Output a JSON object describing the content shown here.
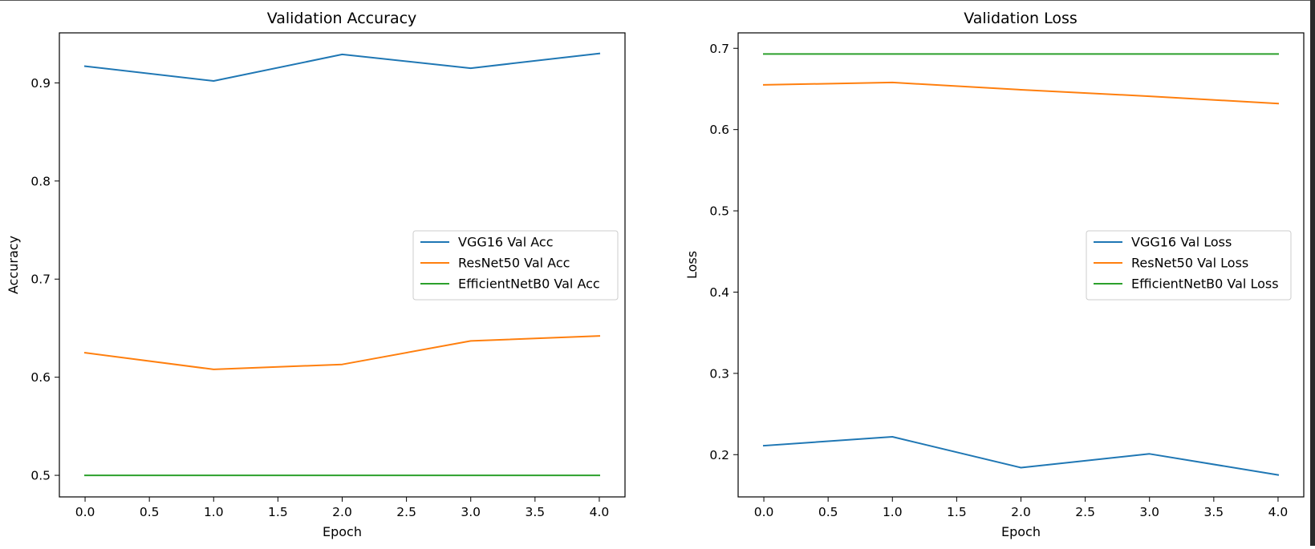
{
  "chart_data": [
    {
      "type": "line",
      "title": "Validation Accuracy",
      "xlabel": "Epoch",
      "ylabel": "Accuracy",
      "x": [
        0,
        1,
        2,
        3,
        4
      ],
      "xlim": [
        -0.2,
        4.2
      ],
      "ylim": [
        0.478,
        0.951
      ],
      "xticks": [
        0.0,
        0.5,
        1.0,
        1.5,
        2.0,
        2.5,
        3.0,
        3.5,
        4.0
      ],
      "xtick_labels": [
        "0.0",
        "0.5",
        "1.0",
        "1.5",
        "2.0",
        "2.5",
        "3.0",
        "3.5",
        "4.0"
      ],
      "yticks": [
        0.5,
        0.6,
        0.7,
        0.8,
        0.9
      ],
      "ytick_labels": [
        "0.5",
        "0.6",
        "0.7",
        "0.8",
        "0.9"
      ],
      "legend_position": "center-right",
      "series": [
        {
          "name": "VGG16 Val Acc",
          "color": "#1f77b4",
          "values": [
            0.917,
            0.902,
            0.929,
            0.915,
            0.93
          ]
        },
        {
          "name": "ResNet50 Val Acc",
          "color": "#ff7f0e",
          "values": [
            0.625,
            0.608,
            0.613,
            0.637,
            0.642
          ]
        },
        {
          "name": "EfficientNetB0 Val Acc",
          "color": "#2ca02c",
          "values": [
            0.5,
            0.5,
            0.5,
            0.5,
            0.5
          ]
        }
      ],
      "grid": false
    },
    {
      "type": "line",
      "title": "Validation Loss",
      "xlabel": "Epoch",
      "ylabel": "Loss",
      "x": [
        0,
        1,
        2,
        3,
        4
      ],
      "xlim": [
        -0.2,
        4.2
      ],
      "ylim": [
        0.148,
        0.719
      ],
      "xticks": [
        0.0,
        0.5,
        1.0,
        1.5,
        2.0,
        2.5,
        3.0,
        3.5,
        4.0
      ],
      "xtick_labels": [
        "0.0",
        "0.5",
        "1.0",
        "1.5",
        "2.0",
        "2.5",
        "3.0",
        "3.5",
        "4.0"
      ],
      "yticks": [
        0.2,
        0.3,
        0.4,
        0.5,
        0.6,
        0.7
      ],
      "ytick_labels": [
        "0.2",
        "0.3",
        "0.4",
        "0.5",
        "0.6",
        "0.7"
      ],
      "legend_position": "center-right",
      "series": [
        {
          "name": "VGG16 Val Loss",
          "color": "#1f77b4",
          "values": [
            0.211,
            0.222,
            0.184,
            0.201,
            0.175
          ]
        },
        {
          "name": "ResNet50 Val Loss",
          "color": "#ff7f0e",
          "values": [
            0.655,
            0.658,
            0.649,
            0.641,
            0.632
          ]
        },
        {
          "name": "EfficientNetB0 Val Loss",
          "color": "#2ca02c",
          "values": [
            0.693,
            0.693,
            0.693,
            0.693,
            0.693
          ]
        }
      ],
      "grid": false
    }
  ]
}
